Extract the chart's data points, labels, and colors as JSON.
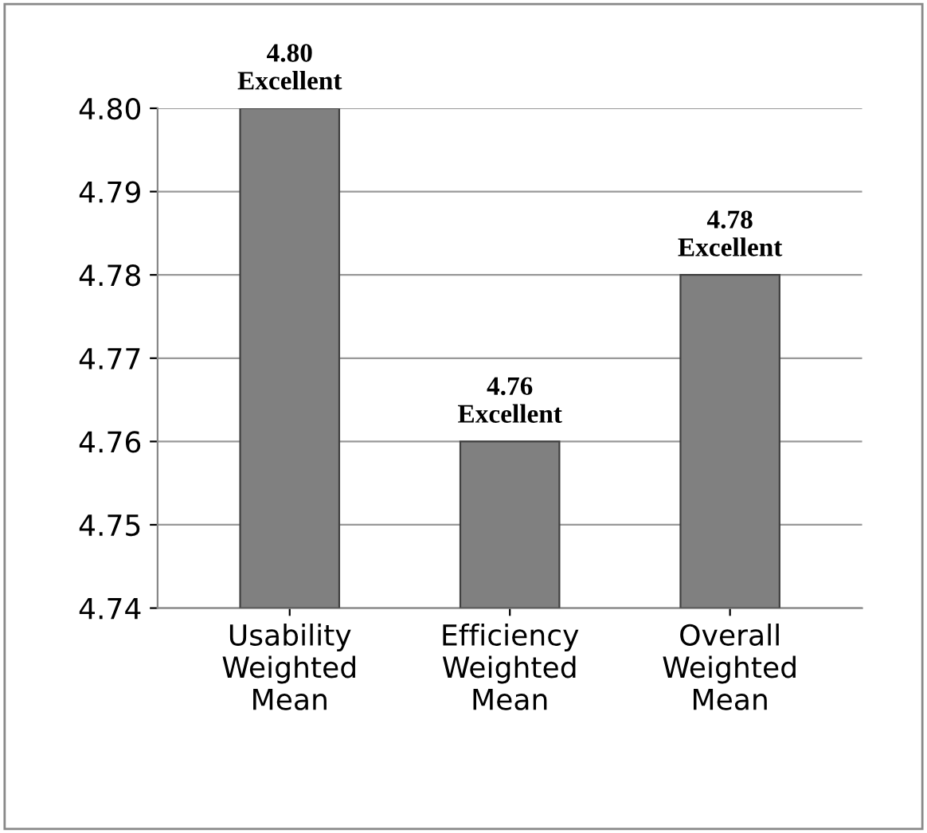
{
  "chart_data": {
    "type": "bar",
    "categories": [
      "Usability\nWeighted\nMean",
      "Efficiency\nWeighted\nMean",
      "Overall\nWeighted\nMean"
    ],
    "values": [
      4.8,
      4.76,
      4.78
    ],
    "color": "#808080",
    "value_labels": [
      "4.80\nExcellent",
      "4.76\nExcellent",
      "4.78\nExcellent"
    ],
    "ylim": [
      4.74,
      4.8
    ],
    "yticks": [
      {
        "value": 4.74,
        "label": "4.74"
      },
      {
        "value": 4.75,
        "label": "4.75"
      },
      {
        "value": 4.76,
        "label": "4.76"
      },
      {
        "value": 4.77,
        "label": "4.77"
      },
      {
        "value": 4.78,
        "label": "4.78"
      },
      {
        "value": 4.79,
        "label": "4.79"
      },
      {
        "value": 4.8,
        "label": "4.80"
      }
    ],
    "grid": "y"
  }
}
